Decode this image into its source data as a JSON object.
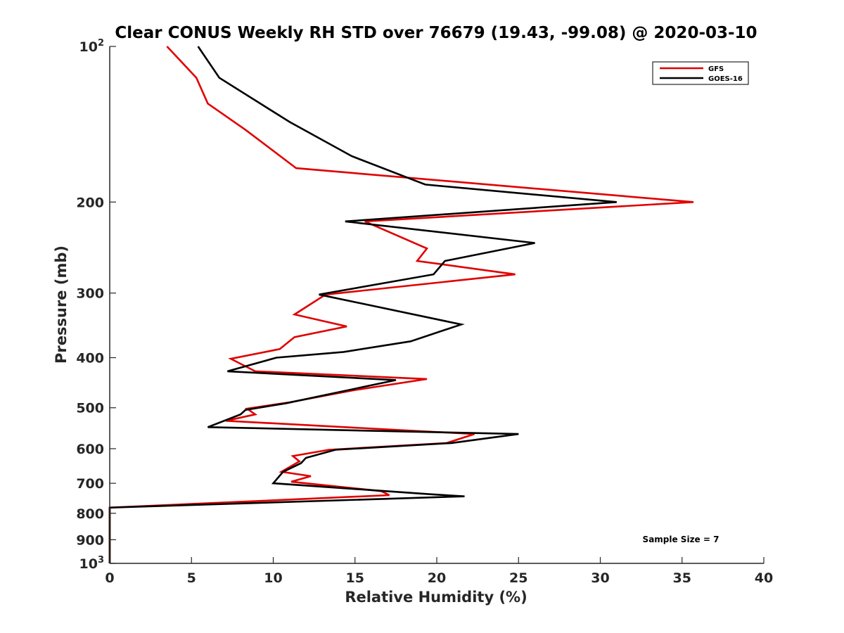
{
  "chart_data": {
    "type": "line",
    "title": "Clear CONUS Weekly RH STD over 76679 (19.43, -99.08) @ 2020-03-10",
    "xlabel": "Relative Humidity (%)",
    "ylabel": "Pressure (mb)",
    "xlim": [
      0,
      40
    ],
    "ylim": [
      100,
      1000
    ],
    "y_scale": "log",
    "y_reversed": true,
    "x_ticks": [
      0,
      5,
      10,
      15,
      20,
      25,
      30,
      35,
      40
    ],
    "y_ticks": [
      {
        "value": 100,
        "label": "10",
        "exp": "2"
      },
      {
        "value": 200,
        "label": "200"
      },
      {
        "value": 300,
        "label": "300"
      },
      {
        "value": 400,
        "label": "400"
      },
      {
        "value": 500,
        "label": "500"
      },
      {
        "value": 600,
        "label": "600"
      },
      {
        "value": 700,
        "label": "700"
      },
      {
        "value": 800,
        "label": "800"
      },
      {
        "value": 900,
        "label": "900"
      },
      {
        "value": 1000,
        "label": "10",
        "exp": "3"
      }
    ],
    "legend_position": "top-right",
    "grid": false,
    "annotation": "Sample Size = 7",
    "series": [
      {
        "name": "GFS",
        "color": "#e00000",
        "points": [
          [
            3.5,
            100
          ],
          [
            5.3,
            115
          ],
          [
            6.0,
            129
          ],
          [
            8.3,
            145
          ],
          [
            11.4,
            172
          ],
          [
            35.7,
            200
          ],
          [
            15.6,
            218
          ],
          [
            19.4,
            246
          ],
          [
            18.8,
            260
          ],
          [
            24.8,
            276
          ],
          [
            13.2,
            302
          ],
          [
            11.3,
            330
          ],
          [
            14.5,
            348
          ],
          [
            11.3,
            365
          ],
          [
            10.4,
            385
          ],
          [
            7.4,
            402
          ],
          [
            8.9,
            425
          ],
          [
            19.4,
            440
          ],
          [
            15.0,
            462
          ],
          [
            11.0,
            488
          ],
          [
            8.4,
            502
          ],
          [
            8.9,
            515
          ],
          [
            7.1,
            530
          ],
          [
            22.3,
            562
          ],
          [
            20.6,
            585
          ],
          [
            13.4,
            603
          ],
          [
            11.2,
            620
          ],
          [
            11.6,
            635
          ],
          [
            10.5,
            665
          ],
          [
            12.3,
            678
          ],
          [
            11.1,
            695
          ],
          [
            16.6,
            725
          ],
          [
            17.1,
            738
          ],
          [
            0,
            780
          ],
          [
            0,
            1000
          ]
        ]
      },
      {
        "name": "GOES-16",
        "color": "#000000",
        "points": [
          [
            5.4,
            100
          ],
          [
            6.7,
            115
          ],
          [
            11.0,
            140
          ],
          [
            14.8,
            163
          ],
          [
            19.3,
            185
          ],
          [
            31.0,
            200
          ],
          [
            14.4,
            218
          ],
          [
            26.0,
            240
          ],
          [
            20.5,
            260
          ],
          [
            19.8,
            276
          ],
          [
            12.8,
            302
          ],
          [
            21.5,
            345
          ],
          [
            18.4,
            372
          ],
          [
            14.3,
            390
          ],
          [
            10.2,
            400
          ],
          [
            7.2,
            425
          ],
          [
            17.5,
            442
          ],
          [
            14.2,
            465
          ],
          [
            10.8,
            490
          ],
          [
            8.3,
            505
          ],
          [
            8.0,
            515
          ],
          [
            6.0,
            545
          ],
          [
            25.0,
            562
          ],
          [
            20.9,
            585
          ],
          [
            13.8,
            603
          ],
          [
            12.0,
            625
          ],
          [
            11.7,
            640
          ],
          [
            10.6,
            665
          ],
          [
            10.0,
            700
          ],
          [
            19.6,
            735
          ],
          [
            21.7,
            742
          ],
          [
            0,
            780
          ],
          [
            0,
            1000
          ]
        ]
      }
    ]
  }
}
